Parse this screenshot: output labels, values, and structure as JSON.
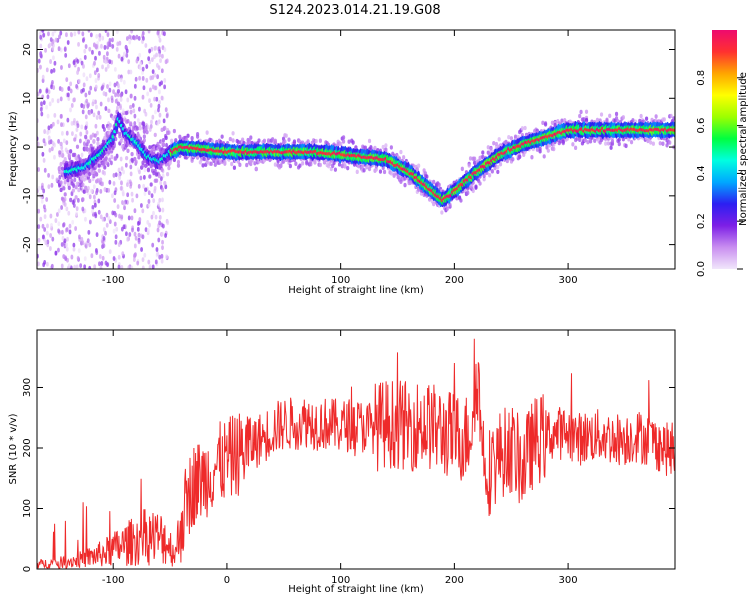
{
  "page_title": "S124.2023.014.21.19.G08",
  "colors": {
    "snr_line": "#ee2a2a",
    "colormap_stops": [
      "#f1e6fb",
      "#c98ef0",
      "#7d1fe6",
      "#2c1ff2",
      "#00a8ff",
      "#00ffe0",
      "#00ff40",
      "#9dff00",
      "#ffff00",
      "#ffa500",
      "#ff3030",
      "#ee0a6e"
    ]
  },
  "chart_data": [
    {
      "type": "heatmap",
      "title": "",
      "xlabel": "Height of straight line (km)",
      "ylabel": "Frequency (Hz)",
      "xlim": [
        -167,
        394
      ],
      "ylim": [
        -25,
        24
      ],
      "xticks": [
        -100,
        0,
        100,
        200,
        300
      ],
      "yticks": [
        -20,
        -10,
        0,
        10,
        20
      ],
      "grid": false,
      "colorbar": {
        "label": "Normalized spectral amplitude",
        "range": [
          0,
          1
        ],
        "ticks": [
          0.0,
          0.2,
          0.4,
          0.6,
          0.8
        ]
      },
      "ridge": {
        "x": [
          -140,
          -125,
          -110,
          -100,
          -95,
          -90,
          -80,
          -70,
          -60,
          -50,
          -40,
          -20,
          0,
          20,
          40,
          60,
          80,
          100,
          120,
          140,
          160,
          175,
          190,
          200,
          220,
          240,
          260,
          280,
          300,
          320,
          340,
          360,
          380,
          390
        ],
        "y": [
          -5,
          -4,
          -1,
          2,
          6,
          3,
          1,
          -2,
          -3,
          -1,
          0,
          -0.5,
          -1,
          -1,
          -1,
          -1,
          -1,
          -1.5,
          -2,
          -2.5,
          -5,
          -8,
          -11,
          -9,
          -5,
          -1.5,
          0.5,
          2,
          3.5,
          3.5,
          3.5,
          3.5,
          3.5,
          3.5
        ]
      }
    },
    {
      "type": "line",
      "title": "",
      "xlabel": "Height of straight line (km)",
      "ylabel": "SNR (10 * v/v)",
      "xlim": [
        -167,
        394
      ],
      "ylim": [
        0,
        395
      ],
      "xticks": [
        -100,
        0,
        100,
        200,
        300
      ],
      "yticks": [
        0,
        100,
        200,
        300
      ],
      "grid": false,
      "series": [
        {
          "x": [
            -167,
            -150,
            -130,
            -110,
            -90,
            -70,
            -55,
            -45,
            -40,
            -35,
            -30,
            -20,
            -10,
            0,
            10,
            20,
            30,
            40,
            50,
            60,
            70,
            80,
            90,
            100,
            110,
            120,
            130,
            140,
            150,
            160,
            170,
            180,
            190,
            200,
            210,
            215,
            220,
            225,
            230,
            240,
            250,
            260,
            270,
            280,
            290,
            300,
            310,
            320,
            330,
            340,
            350,
            360,
            370,
            380,
            394
          ],
          "values": [
            8,
            10,
            15,
            25,
            40,
            55,
            50,
            25,
            80,
            110,
            140,
            150,
            170,
            180,
            190,
            205,
            215,
            230,
            240,
            240,
            245,
            240,
            240,
            235,
            240,
            235,
            235,
            240,
            240,
            235,
            240,
            235,
            225,
            220,
            215,
            240,
            330,
            200,
            160,
            190,
            200,
            170,
            210,
            220,
            225,
            225,
            215,
            220,
            220,
            215,
            215,
            220,
            215,
            205,
            190
          ]
        }
      ]
    }
  ]
}
